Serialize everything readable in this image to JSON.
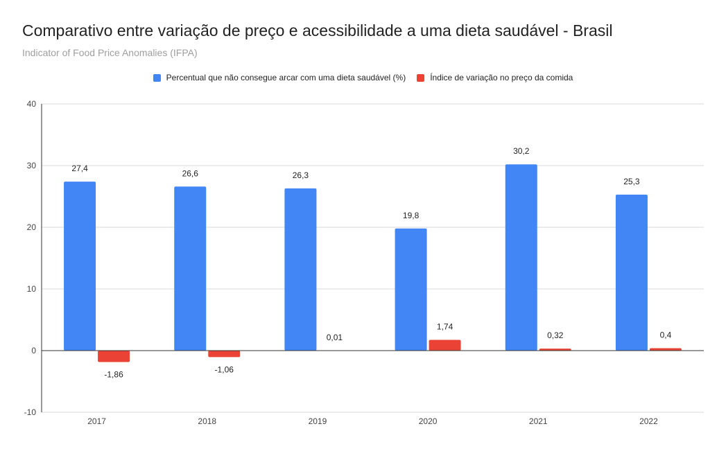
{
  "title": "Comparativo entre variação de preço e acessibilidade a uma dieta saudável - Brasil",
  "subtitle": "Indicator of Food Price Anomalies (IFPA)",
  "colors": {
    "series1": "#4285f4",
    "series2": "#ea4335",
    "grid": "#d9d9d9",
    "axis": "#333333"
  },
  "chart_data": {
    "type": "bar",
    "categories": [
      "2017",
      "2018",
      "2019",
      "2020",
      "2021",
      "2022"
    ],
    "series": [
      {
        "name": "Percentual que não consegue arcar com uma dieta saudável (%)",
        "values": [
          27.4,
          26.6,
          26.3,
          19.8,
          30.2,
          25.3
        ],
        "labels": [
          "27,4",
          "26,6",
          "26,3",
          "19,8",
          "30,2",
          "25,3"
        ]
      },
      {
        "name": "Índice de variação no preço da comida",
        "values": [
          -1.86,
          -1.06,
          0.01,
          1.74,
          0.32,
          0.4
        ],
        "labels": [
          "-1,86",
          "-1,06",
          "0,01",
          "1,74",
          "0,32",
          "0,4"
        ]
      }
    ],
    "ylim": [
      -10,
      40
    ],
    "yticks": [
      -10,
      0,
      10,
      20,
      30,
      40
    ],
    "ytick_labels": [
      "-10",
      "0",
      "10",
      "20",
      "30",
      "40"
    ],
    "grid": true,
    "legend": "top-center"
  }
}
